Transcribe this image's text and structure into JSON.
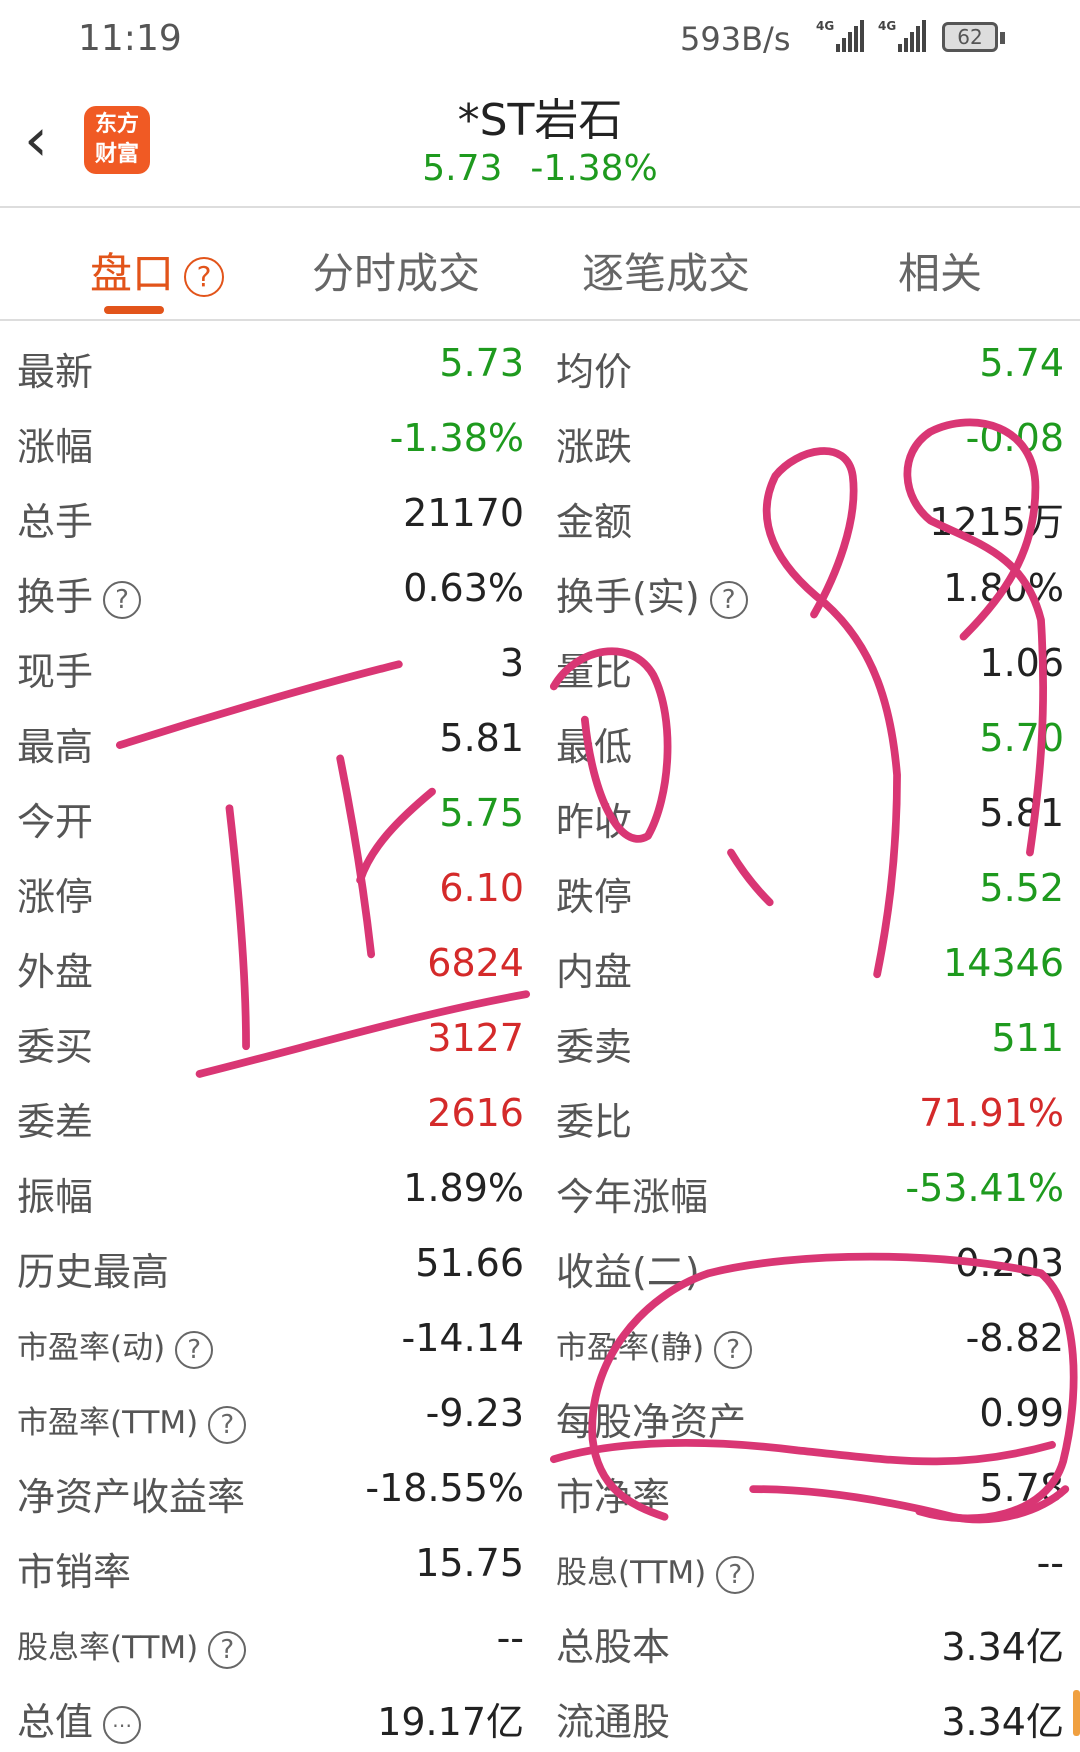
{
  "status_bar": {
    "time": "11:19",
    "net_speed": "593B/s",
    "signal1": "4G",
    "signal2": "4G",
    "battery": "62"
  },
  "header": {
    "back_icon": "chevron-left",
    "logo_line1": "东方",
    "logo_line2": "财富",
    "title": "*ST岩石",
    "price": "5.73",
    "change_pct": "-1.38%"
  },
  "tabs": [
    {
      "label": "盘口",
      "active": true
    },
    {
      "label": "分时成交"
    },
    {
      "label": "逐笔成交"
    },
    {
      "label": "相关"
    }
  ],
  "colors": {
    "up": "#d42a2a",
    "down": "#1e9a1e",
    "accent": "#e2541a",
    "annotation": "#d93674"
  },
  "rows": [
    {
      "ll": "最新",
      "lv": "5.73",
      "lc": "g",
      "rl": "均价",
      "rv": "5.74",
      "rc": "g"
    },
    {
      "ll": "涨幅",
      "lv": "-1.38%",
      "lc": "g",
      "rl": "涨跌",
      "rv": "-0.08",
      "rc": "g"
    },
    {
      "ll": "总手",
      "lv": "21170",
      "rl": "金额",
      "rv": "1215万"
    },
    {
      "ll": "换手",
      "lq": true,
      "lv": "0.63%",
      "rl": "换手(实)",
      "rq": true,
      "rv": "1.80%"
    },
    {
      "ll": "现手",
      "lv": "3",
      "rl": "量比",
      "rv": "1.06"
    },
    {
      "ll": "最高",
      "lv": "5.81",
      "rl": "最低",
      "rv": "5.70",
      "rc": "g"
    },
    {
      "ll": "今开",
      "lv": "5.75",
      "lc": "g",
      "rl": "昨收",
      "rv": "5.81"
    },
    {
      "ll": "涨停",
      "lv": "6.10",
      "lc": "red",
      "rl": "跌停",
      "rv": "5.52",
      "rc": "g"
    },
    {
      "ll": "外盘",
      "lv": "6824",
      "lc": "red",
      "rl": "内盘",
      "rv": "14346",
      "rc": "g"
    },
    {
      "ll": "委买",
      "lv": "3127",
      "lc": "red",
      "rl": "委卖",
      "rv": "511",
      "rc": "g"
    },
    {
      "ll": "委差",
      "lv": "2616",
      "lc": "red",
      "rl": "委比",
      "rv": "71.91%",
      "rc": "red"
    },
    {
      "ll": "振幅",
      "lv": "1.89%",
      "rl": "今年涨幅",
      "rv": "-53.41%",
      "rc": "g"
    },
    {
      "ll": "历史最高",
      "lv": "51.66",
      "rl": "收益(二)",
      "rv": "0.203"
    },
    {
      "ll": "市盈率(动)",
      "ls": true,
      "lq": true,
      "lv": "-14.14",
      "rl": "市盈率(静)",
      "rs": true,
      "rq": true,
      "rv": "-8.82"
    },
    {
      "ll": "市盈率(TTM)",
      "ls": true,
      "lq": true,
      "lv": "-9.23",
      "rl": "每股净资产",
      "rv": "0.99"
    },
    {
      "ll": "净资产收益率",
      "lv": "-18.55%",
      "rl": "市净率",
      "rv": "5.78"
    },
    {
      "ll": "市销率",
      "lv": "15.75",
      "rl": "股息(TTM)",
      "rs": true,
      "rq": true,
      "rv": "--"
    },
    {
      "ll": "股息率(TTM)",
      "ls": true,
      "lq": true,
      "lv": "--",
      "rl": "总股本",
      "rv": "3.34亿"
    },
    {
      "ll": "总值",
      "lmore": true,
      "lv": "19.17亿",
      "rl": "流通股",
      "rv": "3.34亿"
    }
  ],
  "annotation": {
    "text": "正0.99"
  }
}
